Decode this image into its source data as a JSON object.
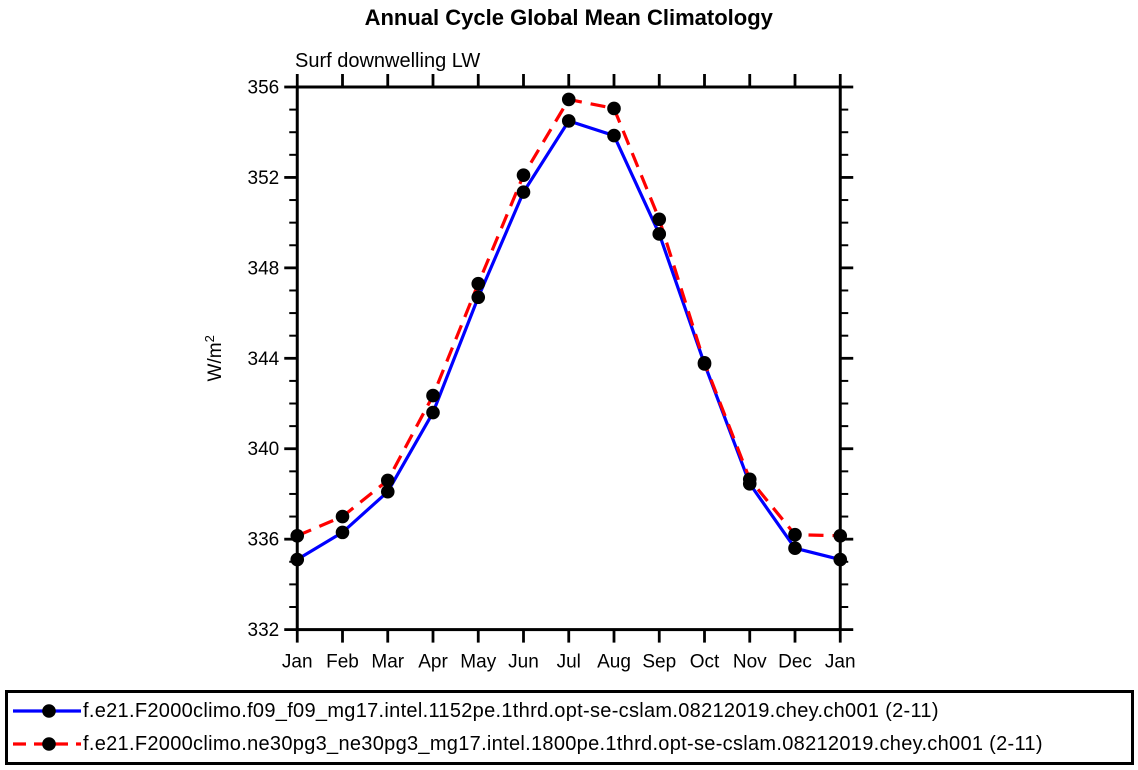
{
  "chart_data": {
    "type": "line",
    "title": "Annual Cycle Global Mean Climatology",
    "subtitle": "Surf downwelling LW",
    "ylabel": "W/m2",
    "ylabel_base": "W/m",
    "ylabel_exponent": "2",
    "categories": [
      "Jan",
      "Feb",
      "Mar",
      "Apr",
      "May",
      "Jun",
      "Jul",
      "Aug",
      "Sep",
      "Oct",
      "Nov",
      "Dec",
      "Jan"
    ],
    "ylim": [
      332,
      356
    ],
    "yticks": [
      332,
      336,
      340,
      344,
      348,
      352,
      356
    ],
    "ytick_minor_step": 1,
    "grid": false,
    "legend_position": "bottom",
    "axis_color": "#000000",
    "marker": {
      "shape": "circle",
      "color": "#000000"
    },
    "series": [
      {
        "name": "f.e21.F2000climo.f09_f09_mg17.intel.1152pe.1thrd.opt-se-cslam.08212019.chey.ch001 (2-11)",
        "color": "#0000ff",
        "line_style": "solid",
        "values": [
          335.1,
          336.3,
          338.1,
          341.6,
          346.7,
          351.35,
          354.5,
          353.85,
          349.5,
          343.75,
          338.45,
          335.6,
          335.1
        ]
      },
      {
        "name": "f.e21.F2000climo.ne30pg3_ne30pg3_mg17.intel.1800pe.1thrd.opt-se-cslam.08212019.chey.ch001 (2-11)",
        "color": "#ff0000",
        "line_style": "dashed",
        "values": [
          336.15,
          337.0,
          338.6,
          342.35,
          347.3,
          352.1,
          355.45,
          355.05,
          350.15,
          343.8,
          338.65,
          336.2,
          336.15
        ]
      }
    ]
  }
}
